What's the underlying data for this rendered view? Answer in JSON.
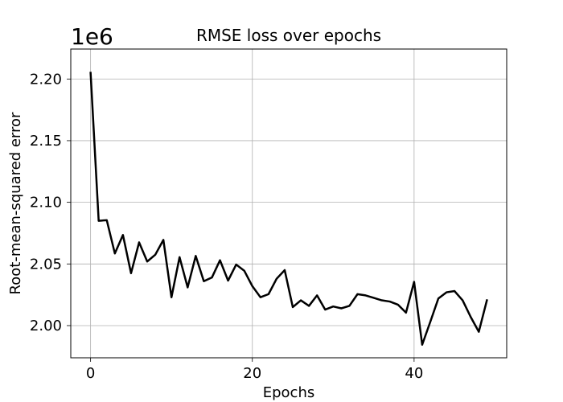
{
  "chart_data": {
    "type": "line",
    "title": "RMSE loss over epochs",
    "xlabel": "Epochs",
    "ylabel": "Root-mean-squared error",
    "y_offset_label": "1e6",
    "xlim": [
      -2.45,
      51.45
    ],
    "ylim": [
      1.9739,
      2.2243
    ],
    "xticks": [
      0,
      20,
      40
    ],
    "xtick_labels": [
      "0",
      "20",
      "40"
    ],
    "yticks": [
      2.0,
      2.05,
      2.1,
      2.15,
      2.2
    ],
    "ytick_labels": [
      "2.00",
      "2.05",
      "2.10",
      "2.15",
      "2.20"
    ],
    "grid": true,
    "series": [
      {
        "color": "#000000",
        "x": [
          0,
          1,
          2,
          3,
          4,
          5,
          6,
          7,
          8,
          9,
          10,
          11,
          12,
          13,
          14,
          15,
          16,
          17,
          18,
          19,
          20,
          21,
          22,
          23,
          24,
          25,
          26,
          27,
          28,
          29,
          30,
          31,
          32,
          33,
          34,
          35,
          36,
          37,
          38,
          39,
          40,
          41,
          42,
          43,
          44,
          45,
          46,
          47,
          48,
          49
        ],
        "y": [
          2.205,
          2.085,
          2.0855,
          2.0585,
          2.0735,
          2.0425,
          2.0675,
          2.052,
          2.0575,
          2.0695,
          2.023,
          2.0555,
          2.031,
          2.0565,
          2.036,
          2.039,
          2.053,
          2.0365,
          2.0495,
          2.0445,
          2.032,
          2.023,
          2.0255,
          2.038,
          2.045,
          2.015,
          2.0205,
          2.016,
          2.0245,
          2.013,
          2.0155,
          2.014,
          2.016,
          2.0255,
          2.0245,
          2.0225,
          2.0205,
          2.0195,
          2.017,
          2.0105,
          2.0355,
          1.9845,
          2.003,
          2.022,
          2.027,
          2.028,
          2.0205,
          2.007,
          1.995,
          2.0205
        ]
      }
    ]
  }
}
